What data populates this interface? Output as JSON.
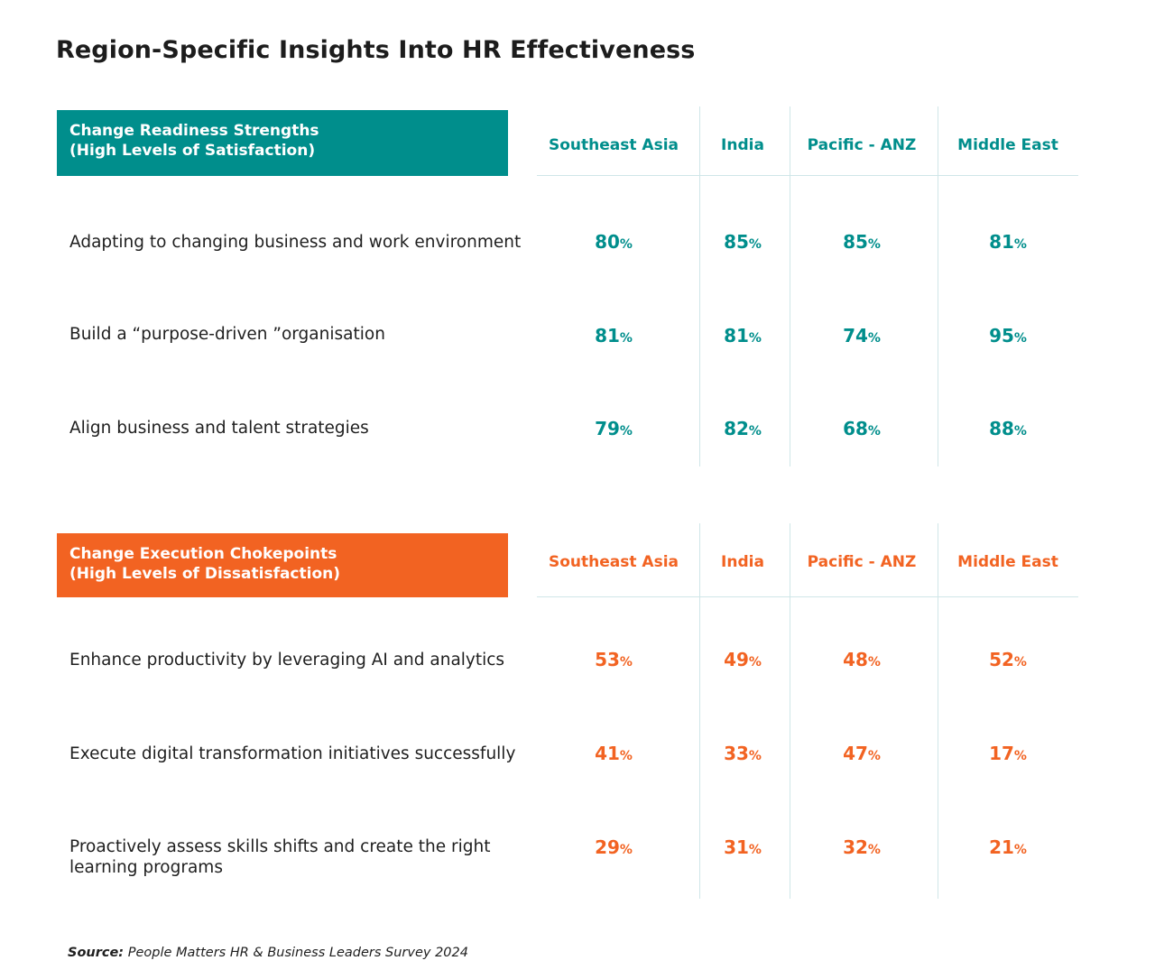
{
  "title": "Region-Specific Insights Into HR Effectiveness",
  "colors": {
    "teal": "#008e8c",
    "orange": "#f26322",
    "text": "#1f1f1f",
    "grid": "#cfe6e8"
  },
  "chart_data": [
    {
      "type": "table",
      "title_lines": [
        "Change Readiness Strengths",
        "(High Levels of Satisfaction)"
      ],
      "accent": "#008e8c",
      "columns": [
        "Southeast Asia",
        "India",
        "Pacific - ANZ",
        "Middle East"
      ],
      "rows": [
        {
          "label": "Adapting to changing business and work environment",
          "values": [
            "80",
            "85",
            "85",
            "81"
          ]
        },
        {
          "label": "Build a “purpose-driven ”organisation",
          "values": [
            "81",
            "81",
            "74",
            "95"
          ]
        },
        {
          "label": "Align business and talent strategies",
          "values": [
            "79",
            "82",
            "68",
            "88"
          ]
        }
      ],
      "unit": "%"
    },
    {
      "type": "table",
      "title_lines": [
        "Change Execution Chokepoints",
        "(High Levels of Dissatisfaction)"
      ],
      "accent": "#f26322",
      "columns": [
        "Southeast Asia",
        "India",
        "Pacific - ANZ",
        "Middle East"
      ],
      "rows": [
        {
          "label": "Enhance productivity by leveraging AI and analytics",
          "values": [
            "53",
            "49",
            "48",
            "52"
          ]
        },
        {
          "label": "Execute digital transformation initiatives successfully",
          "values": [
            "41",
            "33",
            "47",
            "17"
          ]
        },
        {
          "label": "Proactively assess skills shifts and create the right learning programs",
          "values": [
            "29",
            "31",
            "32",
            "21"
          ]
        }
      ],
      "unit": "%"
    }
  ],
  "source": {
    "label": "Source:",
    "text": "People Matters HR & Business Leaders Survey 2024"
  }
}
